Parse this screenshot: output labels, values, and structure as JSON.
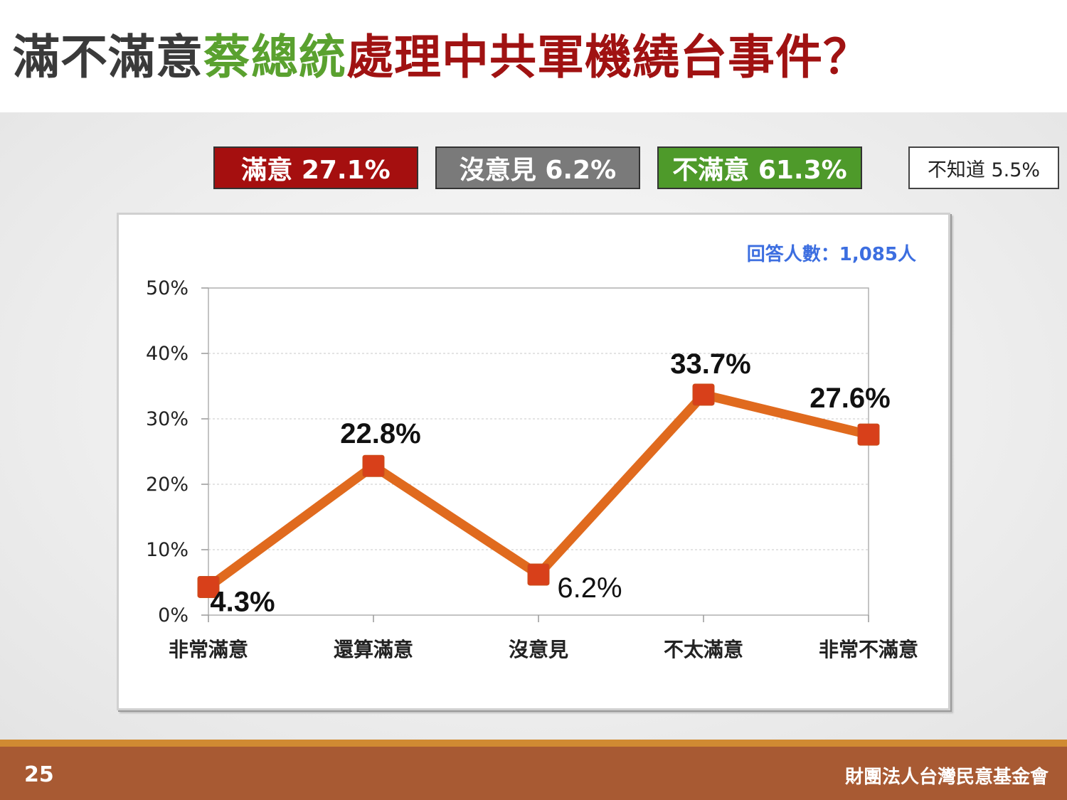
{
  "title": {
    "part1": "滿不滿意",
    "part2": "蔡總統",
    "part3": "處理中共軍機繞台事件？",
    "colors": {
      "part1": "#3a3a3a",
      "part2": "#5aa12f",
      "part3": "#a01212"
    }
  },
  "legend": {
    "satisfied": "滿意 27.1%",
    "no_opinion": "沒意見 6.2%",
    "dissatisfied": "不滿意 61.3%",
    "dont_know": "不知道 5.5%"
  },
  "chart_data": {
    "type": "line",
    "categories": [
      "非常滿意",
      "還算滿意",
      "沒意見",
      "不太滿意",
      "非常不滿意"
    ],
    "values": [
      4.3,
      22.8,
      6.2,
      33.7,
      27.6
    ],
    "data_labels": [
      "4.3%",
      "22.8%",
      "6.2%",
      "33.7%",
      "27.6%"
    ],
    "yticks": [
      "0%",
      "10%",
      "20%",
      "30%",
      "40%",
      "50%"
    ],
    "ylim": [
      0,
      50
    ],
    "grid": true,
    "respondents_note": "回答人數：1,085人",
    "line_color": "#e06a1e",
    "marker_color": "#d8401a"
  },
  "footer": {
    "page_number": "25",
    "organization": "財團法人台灣民意基金會"
  }
}
